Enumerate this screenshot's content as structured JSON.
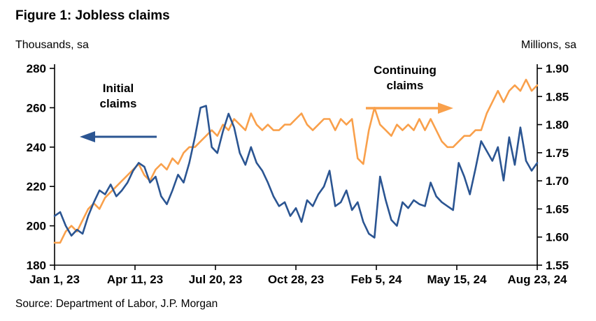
{
  "header": {
    "title": "Figure 1: Jobless claims",
    "left_units": "Thousands, sa",
    "right_units": "Millions, sa"
  },
  "annotations": {
    "initial_label": "Initial claims",
    "continuing_label": "Continuing claims"
  },
  "footer": {
    "source": "Source: Department of Labor, J.P. Morgan"
  },
  "colors": {
    "initial": "#2B5592",
    "continuing": "#F9A04B",
    "axis": "#000000"
  },
  "chart_data": {
    "type": "line",
    "title": "Figure 1: Jobless claims",
    "x_tick_labels": [
      "Jan 1, 23",
      "Apr 11, 23",
      "Jul 20, 23",
      "Oct 28, 23",
      "Feb 5, 24",
      "May 15, 24",
      "Aug 23, 24"
    ],
    "y_left": {
      "label": "Thousands, sa",
      "tick_labels": [
        "280",
        "260",
        "240",
        "220",
        "200",
        "180"
      ],
      "range": [
        180,
        280
      ]
    },
    "y_right": {
      "label": "Millions, sa",
      "tick_labels": [
        "1.90",
        "1.85",
        "1.80",
        "1.75",
        "1.70",
        "1.65",
        "1.60",
        "1.55"
      ],
      "range": [
        1.55,
        1.9
      ]
    },
    "grid": false,
    "legend": "in-plot arrow annotations",
    "series": [
      {
        "name": "Continuing claims",
        "axis": "right",
        "color": "#F9A04B",
        "values": [
          1.59,
          1.59,
          1.61,
          1.62,
          1.61,
          1.63,
          1.65,
          1.66,
          1.65,
          1.67,
          1.68,
          1.69,
          1.7,
          1.71,
          1.72,
          1.73,
          1.71,
          1.7,
          1.72,
          1.73,
          1.72,
          1.74,
          1.73,
          1.75,
          1.76,
          1.76,
          1.77,
          1.78,
          1.79,
          1.78,
          1.8,
          1.79,
          1.81,
          1.8,
          1.79,
          1.82,
          1.8,
          1.79,
          1.8,
          1.79,
          1.79,
          1.8,
          1.8,
          1.81,
          1.82,
          1.8,
          1.79,
          1.8,
          1.81,
          1.81,
          1.79,
          1.81,
          1.8,
          1.81,
          1.74,
          1.73,
          1.79,
          1.83,
          1.8,
          1.79,
          1.78,
          1.8,
          1.79,
          1.8,
          1.79,
          1.81,
          1.79,
          1.81,
          1.79,
          1.77,
          1.76,
          1.76,
          1.77,
          1.78,
          1.78,
          1.79,
          1.79,
          1.82,
          1.84,
          1.86,
          1.84,
          1.86,
          1.87,
          1.86,
          1.88,
          1.86,
          1.87
        ]
      },
      {
        "name": "Initial claims",
        "axis": "left",
        "color": "#2B5592",
        "values": [
          205,
          207,
          200,
          195,
          198,
          196,
          205,
          212,
          218,
          216,
          221,
          215,
          218,
          222,
          228,
          232,
          230,
          222,
          225,
          215,
          211,
          218,
          226,
          222,
          232,
          245,
          260,
          261,
          240,
          237,
          248,
          257,
          250,
          237,
          231,
          240,
          232,
          228,
          222,
          215,
          210,
          212,
          205,
          209,
          202,
          213,
          210,
          216,
          220,
          228,
          210,
          212,
          218,
          208,
          212,
          202,
          196,
          194,
          225,
          213,
          203,
          200,
          212,
          209,
          213,
          211,
          210,
          222,
          215,
          212,
          210,
          208,
          232,
          225,
          216,
          229,
          243,
          238,
          233,
          240,
          223,
          245,
          231,
          250,
          233,
          228,
          232
        ]
      }
    ]
  }
}
